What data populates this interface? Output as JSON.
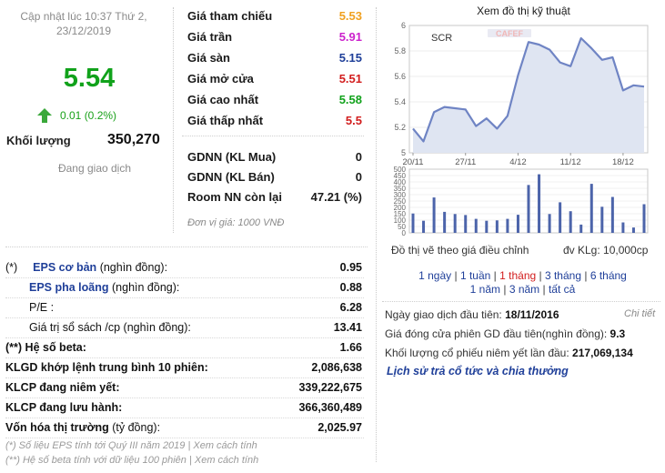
{
  "header": {
    "update_time": "Cập nhật lúc 10:37 Thứ 2, 23/12/2019",
    "price": "5.54",
    "change": "0.01 (0.2%)",
    "volume_label": "Khối lượng",
    "volume_value": "350,270",
    "status": "Đang giao dịch"
  },
  "prices": {
    "items": [
      {
        "label": "Giá tham chiếu",
        "value": "5.53",
        "color": "#f0a01f"
      },
      {
        "label": "Giá trần",
        "value": "5.91",
        "color": "#cc22cc"
      },
      {
        "label": "Giá sàn",
        "value": "5.15",
        "color": "#1f3f99"
      },
      {
        "label": "Giá mở cửa",
        "value": "5.51",
        "color": "#d21d1d"
      },
      {
        "label": "Giá cao nhất",
        "value": "5.58",
        "color": "#11a21b"
      },
      {
        "label": "Giá thấp nhất",
        "value": "5.5",
        "color": "#d21d1d"
      }
    ],
    "foreign": [
      {
        "label": "GDNN (KL Mua)",
        "value": "0"
      },
      {
        "label": "GDNN (KL Bán)",
        "value": "0"
      },
      {
        "label": "Room NN còn lại",
        "value": "47.21 (%)"
      }
    ],
    "unit_note": "Đơn vị giá: 1000 VNĐ"
  },
  "fundamentals": {
    "rows": [
      {
        "prefix": "(*)",
        "label": "EPS cơ bản",
        "suffix": "(nghìn đồng):",
        "value": "0.95"
      },
      {
        "prefix": "",
        "label": "EPS pha loãng",
        "suffix": "(nghìn đồng):",
        "value": "0.88"
      },
      {
        "prefix": "",
        "label": "P/E :",
        "suffix": "",
        "value": "6.28"
      },
      {
        "prefix": "",
        "label": "Giá trị sổ sách /cp",
        "suffix": "(nghìn đồng):",
        "value": "13.41"
      },
      {
        "prefix": "(**)",
        "label": "Hệ số beta:",
        "suffix": "",
        "value": "1.66"
      },
      {
        "prefix": "",
        "label": "KLGD khớp lệnh trung bình 10 phiên:",
        "suffix": "",
        "value": "2,086,638"
      },
      {
        "prefix": "",
        "label": "KLCP đang niêm yết:",
        "suffix": "",
        "value": "339,222,675"
      },
      {
        "prefix": "",
        "label": "KLCP đang lưu hành:",
        "suffix": "",
        "value": "366,360,489"
      },
      {
        "prefix": "",
        "label": "Vốn hóa thị trường",
        "suffix": "(tỷ đồng):",
        "value": "2,025.97"
      }
    ],
    "footnote_1": "(*) Số liệu EPS tính tới Quý III năm 2019 | Xem cách tính",
    "footnote_2": "(**) Hệ số beta tính với dữ liệu 100 phiên | Xem cách tính"
  },
  "chart_panel": {
    "title": "Xem đồ thị kỹ thuật",
    "caption": "Đồ thị vẽ theo giá điều chỉnh",
    "unit": "đv KLg: 10,000cp",
    "periods_row1": [
      "1 ngày",
      "1 tuần",
      "1 tháng",
      "3 tháng",
      "6 tháng"
    ],
    "periods_row2": [
      "1 năm",
      "3 năm",
      "tất cả"
    ],
    "active_period": "1 tháng"
  },
  "chart_data": {
    "type": "line",
    "ticker": "SCR",
    "watermark": "CAFEF",
    "x_tick_labels": [
      "20/11",
      "27/11",
      "4/12",
      "11/12",
      "18/12"
    ],
    "y_ticks": [
      5,
      5.2,
      5.4,
      5.6,
      5.8,
      6
    ],
    "ylim": [
      5,
      6
    ],
    "price_series": [
      5.19,
      5.09,
      5.32,
      5.36,
      5.35,
      5.34,
      5.21,
      5.27,
      5.19,
      5.29,
      5.61,
      5.87,
      5.85,
      5.81,
      5.71,
      5.68,
      5.9,
      5.82,
      5.73,
      5.75,
      5.49,
      5.53,
      5.52
    ],
    "volume_ticks": [
      0,
      50,
      100,
      150,
      200,
      250,
      300,
      350,
      400,
      450,
      500
    ],
    "volume_ylim": [
      0,
      500
    ],
    "volume_series": [
      152,
      95,
      278,
      165,
      148,
      140,
      110,
      95,
      98,
      110,
      142,
      376,
      460,
      148,
      240,
      170,
      65,
      385,
      205,
      282,
      82,
      42,
      225
    ],
    "price_color": "#6f84c4",
    "volume_color": "#4c64aa"
  },
  "listing": {
    "first_day_label": "Ngày giao dịch đầu tiên:",
    "first_day_value": "18/11/2016",
    "first_price_label": "Giá đóng cửa phiên GD đầu tiên(nghìn đồng):",
    "first_price_value": "9.3",
    "listed_volume_label": "Khối lượng cổ phiếu niêm yết lần đầu:",
    "listed_volume_value": "217,069,134",
    "detail_link": "Chi tiết",
    "dividend_link": "Lịch sử trả cổ tức và chia thưởng"
  }
}
